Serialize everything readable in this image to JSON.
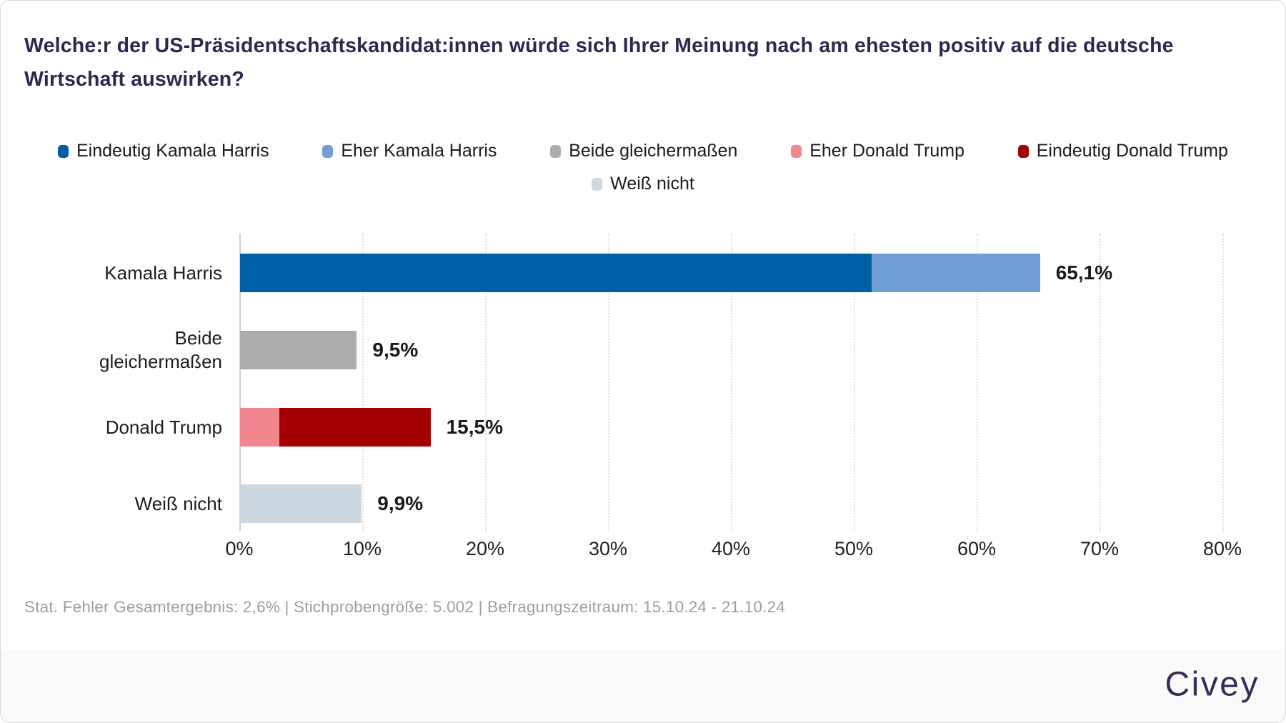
{
  "title": {
    "text": "Welche:r der US-Präsidentschaftskandidat:innen würde sich Ihrer Meinung nach am ehesten positiv auf die deutsche Wirtschaft auswirken?"
  },
  "chart_data": {
    "type": "bar",
    "orientation": "horizontal",
    "title": "",
    "xlabel": "",
    "ylabel": "",
    "grid": true,
    "legend_position": "top",
    "axis": {
      "min": 0,
      "max": 80,
      "tick_values": [
        0,
        10,
        20,
        30,
        40,
        50,
        60,
        70,
        80
      ],
      "ticks": [
        "0%",
        "10%",
        "20%",
        "30%",
        "40%",
        "50%",
        "60%",
        "70%",
        "80%"
      ]
    },
    "categories": [
      "Kamala Harris",
      "Beide gleichermaßen",
      "Donald Trump",
      "Weiß nicht"
    ],
    "category_lines": [
      [
        "Kamala Harris"
      ],
      [
        "Beide",
        "gleichermaßen"
      ],
      [
        "Donald Trump"
      ],
      [
        "Weiß nicht"
      ]
    ],
    "totals": [
      65.1,
      9.5,
      15.5,
      9.9
    ],
    "total_labels": [
      "65,1%",
      "9,5%",
      "15,5%",
      "9,9%"
    ],
    "series": [
      {
        "name": "Eindeutig Kamala Harris",
        "color": "#005ea7",
        "values": [
          51.4,
          0,
          0,
          0
        ]
      },
      {
        "name": "Eher Kamala Harris",
        "color": "#6f9fd4",
        "values": [
          13.7,
          0,
          0,
          0
        ]
      },
      {
        "name": "Beide gleichermaßen",
        "color": "#acacac",
        "values": [
          0,
          9.5,
          0,
          0
        ]
      },
      {
        "name": "Eher Donald Trump",
        "color": "#f0878f",
        "values": [
          0,
          0,
          3.2,
          0
        ]
      },
      {
        "name": "Eindeutig Donald Trump",
        "color": "#a30002",
        "values": [
          0,
          0,
          12.3,
          0
        ]
      },
      {
        "name": "Weiß nicht",
        "color": "#cdd7e0",
        "values": [
          0,
          0,
          0,
          9.9
        ]
      }
    ]
  },
  "footnote": {
    "text": "Stat. Fehler Gesamtergebnis: 2,6% | Stichprobengröße: 5.002 | Befragungszeitraum: 15.10.24 - 21.10.24"
  },
  "footer": {
    "brand": "Civey",
    "brand_color": "#3a2b55",
    "background": "#fafafa"
  },
  "colors": {
    "title": "#32254e",
    "text": "#1a1a1a",
    "footnote": "#9d9d9d",
    "grid": "#e0e0e0",
    "axis_line": "#cccccc",
    "card_border": "#d9d9d9"
  }
}
